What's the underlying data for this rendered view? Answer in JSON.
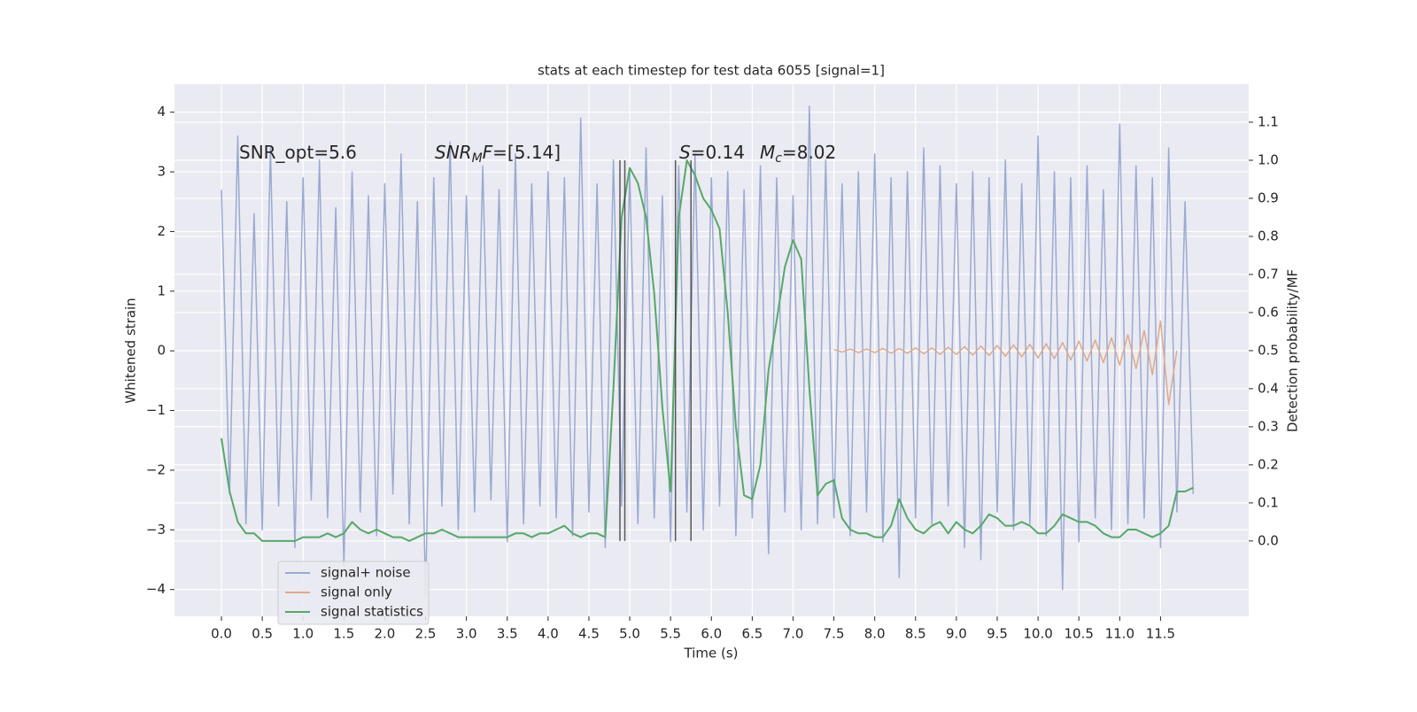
{
  "chart_data": {
    "type": "line",
    "title": "stats at each timestep for test data 6055 [signal=1]",
    "xlabel": "Time (s)",
    "ylabel": "Whitened strain",
    "y2label": "Detection probability/MF",
    "xlim": [
      -0.575,
      12.58
    ],
    "ylim": [
      -4.45,
      4.47
    ],
    "y2lim": [
      -0.198,
      1.2
    ],
    "xticks": [
      {
        "value": 0,
        "label": "0.0"
      },
      {
        "value": 0.5,
        "label": "0.5"
      },
      {
        "value": 1,
        "label": "1.0"
      },
      {
        "value": 1.5,
        "label": "1.5"
      },
      {
        "value": 2,
        "label": "2.0"
      },
      {
        "value": 2.5,
        "label": "2.5"
      },
      {
        "value": 3,
        "label": "3.0"
      },
      {
        "value": 3.5,
        "label": "3.5"
      },
      {
        "value": 4,
        "label": "4.0"
      },
      {
        "value": 4.5,
        "label": "4.5"
      },
      {
        "value": 5,
        "label": "5.0"
      },
      {
        "value": 5.5,
        "label": "5.5"
      },
      {
        "value": 6,
        "label": "6.0"
      },
      {
        "value": 6.5,
        "label": "6.5"
      },
      {
        "value": 7,
        "label": "7.0"
      },
      {
        "value": 7.5,
        "label": "7.5"
      },
      {
        "value": 8,
        "label": "8.0"
      },
      {
        "value": 8.5,
        "label": "8.5"
      },
      {
        "value": 9,
        "label": "9.0"
      },
      {
        "value": 9.5,
        "label": "9.5"
      },
      {
        "value": 10,
        "label": "10.0"
      },
      {
        "value": 10.5,
        "label": "10.5"
      },
      {
        "value": 11,
        "label": "11.0"
      },
      {
        "value": 11.5,
        "label": "11.5"
      }
    ],
    "yticks": [
      {
        "value": -4,
        "label": "−4"
      },
      {
        "value": -3,
        "label": "−3"
      },
      {
        "value": -2,
        "label": "−2"
      },
      {
        "value": -1,
        "label": "−1"
      },
      0,
      1,
      2,
      3,
      4
    ],
    "y2ticks": [
      {
        "value": 0,
        "label": "0.0"
      },
      {
        "value": 0.1,
        "label": "0.1"
      },
      {
        "value": 0.2,
        "label": "0.2"
      },
      {
        "value": 0.3,
        "label": "0.3"
      },
      {
        "value": 0.4,
        "label": "0.4"
      },
      {
        "value": 0.5,
        "label": "0.5"
      },
      {
        "value": 0.6,
        "label": "0.6"
      },
      {
        "value": 0.7,
        "label": "0.7"
      },
      {
        "value": 0.8,
        "label": "0.8"
      },
      {
        "value": 0.9,
        "label": "0.9"
      },
      {
        "value": 1,
        "label": "1.0"
      },
      {
        "value": 1.1,
        "label": "1.1"
      }
    ],
    "grid": true,
    "legend": "lower left",
    "x": [
      0,
      0.1,
      0.2,
      0.3,
      0.4,
      0.5,
      0.6,
      0.7,
      0.8,
      0.9,
      1,
      1.1,
      1.2,
      1.3,
      1.4,
      1.5,
      1.6,
      1.7,
      1.8,
      1.9,
      2,
      2.1,
      2.2,
      2.3,
      2.4,
      2.5,
      2.6,
      2.7,
      2.8,
      2.9,
      3,
      3.1,
      3.2,
      3.3,
      3.4,
      3.5,
      3.6,
      3.7,
      3.8,
      3.9,
      4,
      4.1,
      4.2,
      4.3,
      4.4,
      4.5,
      4.6,
      4.7,
      4.8,
      4.9,
      5,
      5.1,
      5.2,
      5.3,
      5.4,
      5.5,
      5.6,
      5.7,
      5.8,
      5.9,
      6,
      6.1,
      6.2,
      6.3,
      6.4,
      6.5,
      6.6,
      6.7,
      6.8,
      6.9,
      7,
      7.1,
      7.2,
      7.3,
      7.4,
      7.5,
      7.6,
      7.7,
      7.8,
      7.9,
      8,
      8.1,
      8.2,
      8.3,
      8.4,
      8.5,
      8.6,
      8.7,
      8.8,
      8.9,
      9,
      9.1,
      9.2,
      9.3,
      9.4,
      9.5,
      9.6,
      9.7,
      9.8,
      9.9,
      10,
      10.1,
      10.2,
      10.3,
      10.4,
      10.5,
      10.6,
      10.7,
      10.8,
      10.9,
      11,
      11.1,
      11.2,
      11.3,
      11.4,
      11.5,
      11.6,
      11.7,
      11.8,
      11.9
    ],
    "series": [
      {
        "name": "signal+ noise",
        "color": "#9aaad1",
        "values": [
          2.7,
          -2.4,
          3.6,
          -2.9,
          2.3,
          -3.0,
          3.4,
          -2.6,
          2.5,
          -3.3,
          2.9,
          -2.5,
          3.2,
          -2.8,
          2.4,
          -3.6,
          3.0,
          -2.7,
          2.6,
          -3.1,
          2.8,
          -2.4,
          3.3,
          -2.9,
          2.5,
          -4.1,
          2.9,
          -2.6,
          3.5,
          -3.0,
          2.6,
          -2.7,
          3.1,
          -2.5,
          2.7,
          -3.2,
          3.3,
          -2.9,
          2.8,
          -2.6,
          3.0,
          -2.8,
          2.9,
          -3.1,
          3.9,
          -2.7,
          2.8,
          -3.3,
          3.2,
          -2.6,
          3.0,
          -2.9,
          3.4,
          -2.8,
          2.6,
          -3.2,
          3.1,
          -2.7,
          3.3,
          -3.0,
          2.9,
          -2.6,
          3.0,
          -3.1,
          2.7,
          -2.8,
          3.1,
          -3.4,
          2.9,
          -2.7,
          2.6,
          -3.0,
          4.1,
          -2.9,
          3.2,
          -2.8,
          2.8,
          -3.1,
          3.0,
          -2.7,
          3.3,
          -3.2,
          2.9,
          -3.8,
          3.0,
          -2.8,
          3.4,
          -2.9,
          3.1,
          -2.6,
          2.8,
          -3.3,
          3.0,
          -3.5,
          2.9,
          -2.7,
          3.2,
          -3.0,
          2.8,
          -2.9,
          3.6,
          -3.1,
          3.0,
          -4.0,
          2.9,
          -3.2,
          3.1,
          -2.8,
          2.7,
          -3.0,
          3.8,
          -2.9,
          3.1,
          -2.8,
          2.9,
          -3.3,
          3.4,
          -2.7,
          2.5,
          -2.4
        ]
      },
      {
        "name": "signal only",
        "color": "#dfa98a",
        "x": [
          7.5,
          7.6,
          7.7,
          7.8,
          7.9,
          8,
          8.1,
          8.2,
          8.3,
          8.4,
          8.5,
          8.6,
          8.7,
          8.8,
          8.9,
          9,
          9.1,
          9.2,
          9.3,
          9.4,
          9.5,
          9.6,
          9.7,
          9.8,
          9.9,
          10,
          10.1,
          10.2,
          10.3,
          10.4,
          10.5,
          10.6,
          10.7,
          10.8,
          10.9,
          11,
          11.1,
          11.2,
          11.3,
          11.4,
          11.5,
          11.6,
          11.7
        ],
        "values": [
          0.02,
          -0.02,
          0.03,
          -0.03,
          0.03,
          -0.03,
          0.04,
          -0.04,
          0.04,
          -0.04,
          0.05,
          -0.05,
          0.05,
          -0.06,
          0.06,
          -0.06,
          0.07,
          -0.07,
          0.08,
          -0.08,
          0.09,
          -0.09,
          0.1,
          -0.1,
          0.11,
          -0.12,
          0.12,
          -0.13,
          0.14,
          -0.15,
          0.16,
          -0.17,
          0.18,
          -0.2,
          0.22,
          -0.24,
          0.27,
          -0.3,
          0.34,
          -0.4,
          0.5,
          -0.9,
          0
        ]
      },
      {
        "name": "signal statistics",
        "color": "#55a868",
        "axis": "y2",
        "values": [
          0.27,
          0.13,
          0.05,
          0.02,
          0.02,
          0,
          0,
          0,
          0,
          0,
          0.01,
          0.01,
          0.01,
          0.02,
          0.01,
          0.02,
          0.05,
          0.03,
          0.02,
          0.03,
          0.02,
          0.01,
          0.01,
          0,
          0.01,
          0.02,
          0.02,
          0.03,
          0.02,
          0.01,
          0.01,
          0.01,
          0.01,
          0.01,
          0.01,
          0.01,
          0.02,
          0.02,
          0.01,
          0.02,
          0.02,
          0.03,
          0.04,
          0.02,
          0.01,
          0.02,
          0.02,
          0.01,
          0.4,
          0.85,
          0.98,
          0.94,
          0.85,
          0.65,
          0.35,
          0.13,
          0.85,
          1.0,
          0.96,
          0.9,
          0.87,
          0.82,
          0.6,
          0.3,
          0.12,
          0.11,
          0.2,
          0.45,
          0.58,
          0.72,
          0.79,
          0.74,
          0.4,
          0.12,
          0.15,
          0.16,
          0.06,
          0.03,
          0.02,
          0.02,
          0.01,
          0.01,
          0.04,
          0.11,
          0.06,
          0.03,
          0.02,
          0.04,
          0.05,
          0.02,
          0.05,
          0.03,
          0.02,
          0.04,
          0.07,
          0.06,
          0.04,
          0.04,
          0.05,
          0.04,
          0.02,
          0.02,
          0.04,
          0.07,
          0.06,
          0.05,
          0.05,
          0.04,
          0.02,
          0.01,
          0.01,
          0.03,
          0.03,
          0.02,
          0.01,
          0.02,
          0.04,
          0.13,
          0.13,
          0.14
        ]
      }
    ],
    "vlines": {
      "x": [
        4.88,
        4.94,
        5.56,
        5.75
      ],
      "y2": [
        0,
        1
      ]
    },
    "annotations": [
      {
        "parts": [
          {
            "text": "SNR_opt=5.6"
          }
        ]
      },
      {
        "parts": [
          {
            "text": "SNR",
            "italic": true
          },
          {
            "text": "M",
            "italic": true,
            "sub": true
          },
          {
            "text": "F",
            "italic": true
          },
          {
            "text": "=[5.14]"
          }
        ]
      },
      {
        "parts": [
          {
            "text": "S",
            "italic": true
          },
          {
            "text": "=0.14"
          }
        ]
      },
      {
        "parts": [
          {
            "text": "M",
            "italic": true
          },
          {
            "text": "c",
            "italic": true,
            "sub": true
          },
          {
            "text": "=8.02"
          }
        ]
      }
    ]
  }
}
